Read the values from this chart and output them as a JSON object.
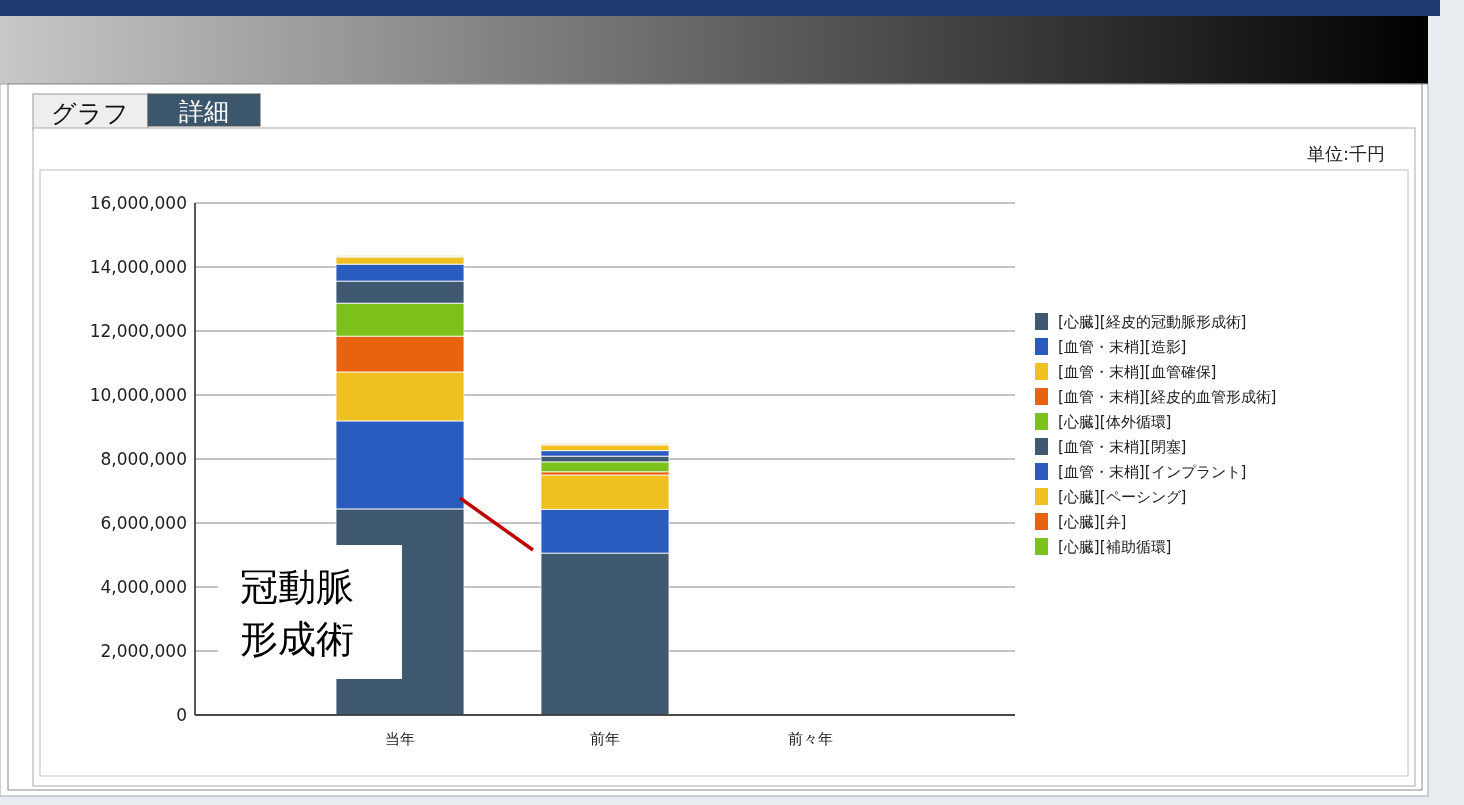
{
  "chart_data": {
    "type": "bar",
    "stacked": true,
    "categories": [
      "当年",
      "前年",
      "前々年"
    ],
    "series": [
      {
        "name": "[心臓][経皮的冠動脈形成術]",
        "color": "#3f5a70",
        "values": [
          6440000.0,
          5060000.0,
          0
        ]
      },
      {
        "name": "[血管・末梢][造影]",
        "color": "#2a5cbf",
        "values": [
          2750000.0,
          1370000.0,
          0
        ]
      },
      {
        "name": "[血管・末梢][血管確保]",
        "color": "#f0c020",
        "values": [
          1530000.0,
          1070000.0,
          0
        ]
      },
      {
        "name": "[血管・末梢][経皮的血管形成術]",
        "color": "#e8620f",
        "values": [
          1120000.0,
          100000.0,
          0
        ]
      },
      {
        "name": "[心臓][体外循環]",
        "color": "#7cc21a",
        "values": [
          1030000.0,
          310000.0,
          0
        ]
      },
      {
        "name": "[血管・末梢][閉塞]",
        "color": "#3f5a70",
        "values": [
          690000.0,
          180000.0,
          0
        ]
      },
      {
        "name": "[血管・末梢][インプラント]",
        "color": "#2a5cbf",
        "values": [
          530000.0,
          170000.0,
          0
        ]
      },
      {
        "name": "[心臓][ペーシング]",
        "color": "#f0c020",
        "values": [
          220000.0,
          180000.0,
          0
        ]
      },
      {
        "name": "[心臓][弁]",
        "color": "#e8620f",
        "values": [
          30000.0,
          30000.0,
          0
        ]
      },
      {
        "name": "[心臓][補助循環]",
        "color": "#7cc21a",
        "values": [
          30000.0,
          30000.0,
          0
        ]
      }
    ],
    "ylim": [
      0,
      16000000
    ],
    "yticks": [
      {
        "value": 0,
        "label": "0"
      },
      {
        "value": 2000000,
        "label": "2,000,000"
      },
      {
        "value": 4000000,
        "label": "4,000,000"
      },
      {
        "value": 6000000,
        "label": "6,000,000"
      },
      {
        "value": 8000000,
        "label": "8,000,000"
      },
      {
        "value": 10000000,
        "label": "10,000,000"
      },
      {
        "value": 12000000,
        "label": "12,000,000"
      },
      {
        "value": 14000000,
        "label": "14,000,000"
      },
      {
        "value": 16000000,
        "label": "16,000,000"
      }
    ],
    "grid": "y",
    "legend": "right",
    "annotations": [
      "グラフ",
      "詳細",
      "単位:千円",
      "冠動脈",
      "形成術"
    ]
  }
}
